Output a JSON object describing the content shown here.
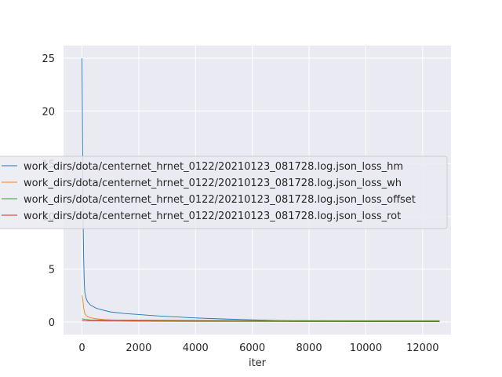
{
  "chart_data": {
    "type": "line",
    "title": "",
    "xlabel": "iter",
    "ylabel": "",
    "xlim": [
      -650,
      13000
    ],
    "ylim": [
      -1.2,
      26.2
    ],
    "xticks": [
      0,
      2000,
      4000,
      6000,
      8000,
      10000,
      12000
    ],
    "xtick_labels": [
      "0",
      "2000",
      "4000",
      "6000",
      "8000",
      "10000",
      "12000"
    ],
    "yticks": [
      0,
      5,
      10,
      15,
      20,
      25
    ],
    "ytick_labels": [
      "0",
      "5",
      "10",
      "15",
      "20",
      "25"
    ],
    "grid": true,
    "background_color": "#eaeaf2",
    "legend_position": "center-left",
    "series": [
      {
        "name": "work_dirs/dota/centernet_hrnet_0122/20210123_081728.log.json_loss_hm",
        "color": "#1f77b4",
        "x": [
          0,
          20,
          40,
          60,
          80,
          100,
          150,
          200,
          300,
          400,
          500,
          700,
          1000,
          1500,
          2000,
          2500,
          3000,
          3500,
          4000,
          5000,
          6000,
          7000,
          8000,
          9000,
          10000,
          11000,
          12000,
          12600
        ],
        "y": [
          25.0,
          17.0,
          9.5,
          6.0,
          3.8,
          2.8,
          2.2,
          1.9,
          1.6,
          1.45,
          1.3,
          1.15,
          0.95,
          0.8,
          0.7,
          0.6,
          0.52,
          0.45,
          0.38,
          0.28,
          0.2,
          0.13,
          0.08,
          0.05,
          0.04,
          0.03,
          0.03,
          0.03
        ]
      },
      {
        "name": "work_dirs/dota/centernet_hrnet_0122/20210123_081728.log.json_loss_wh",
        "color": "#ff7f0e",
        "x": [
          0,
          30,
          60,
          100,
          150,
          200,
          300,
          500,
          800,
          1200,
          2000,
          3000,
          5000,
          8000,
          12600
        ],
        "y": [
          2.5,
          2.1,
          1.3,
          0.8,
          0.6,
          0.5,
          0.4,
          0.3,
          0.22,
          0.17,
          0.13,
          0.1,
          0.07,
          0.05,
          0.04
        ]
      },
      {
        "name": "work_dirs/dota/centernet_hrnet_0122/20210123_081728.log.json_loss_offset",
        "color": "#2ca02c",
        "x": [
          0,
          100,
          300,
          1000,
          3000,
          6000,
          9000,
          12600
        ],
        "y": [
          0.3,
          0.25,
          0.2,
          0.17,
          0.15,
          0.13,
          0.12,
          0.12
        ]
      },
      {
        "name": "work_dirs/dota/centernet_hrnet_0122/20210123_081728.log.json_loss_rot",
        "color": "#d62728",
        "x": [
          0,
          100,
          300,
          1000,
          3000,
          6000,
          9000,
          12600
        ],
        "y": [
          0.15,
          0.12,
          0.1,
          0.08,
          0.06,
          0.05,
          0.04,
          0.04
        ]
      }
    ]
  }
}
